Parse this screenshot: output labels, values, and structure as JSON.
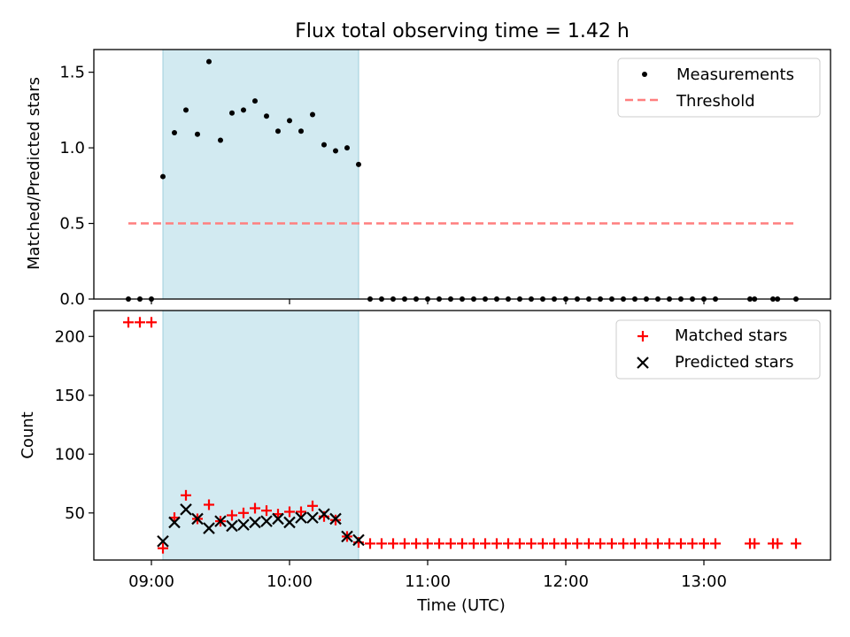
{
  "chart_data": [
    {
      "type": "scatter",
      "title": "Flux total observing time = 1.42 h",
      "xlabel": "",
      "ylabel": "Matched/Predicted stars",
      "xlim": [
        "08:35",
        "13:55"
      ],
      "ylim": [
        0,
        1.65
      ],
      "yticks": [
        0.0,
        0.5,
        1.0,
        1.5
      ],
      "ytick_labels": [
        "0.0",
        "0.5",
        "1.0",
        "1.5"
      ],
      "grid": false,
      "legend_position": "upper right",
      "shaded_interval": {
        "start": "09:05",
        "end": "10:30",
        "color": "#add8e6"
      },
      "series": [
        {
          "name": "Measurements",
          "marker": "dot",
          "color": "#000000",
          "x": [
            "08:50",
            "08:55",
            "09:00",
            "09:05",
            "09:10",
            "09:15",
            "09:20",
            "09:25",
            "09:30",
            "09:35",
            "09:40",
            "09:45",
            "09:50",
            "09:55",
            "10:00",
            "10:05",
            "10:10",
            "10:15",
            "10:20",
            "10:25",
            "10:30",
            "10:35",
            "10:40",
            "10:45",
            "10:50",
            "10:55",
            "11:00",
            "11:05",
            "11:10",
            "11:15",
            "11:20",
            "11:25",
            "11:30",
            "11:35",
            "11:40",
            "11:45",
            "11:50",
            "11:55",
            "12:00",
            "12:05",
            "12:10",
            "12:15",
            "12:20",
            "12:25",
            "12:30",
            "12:35",
            "12:40",
            "12:45",
            "12:50",
            "12:55",
            "13:00",
            "13:05",
            "13:20",
            "13:22",
            "13:30",
            "13:32",
            "13:40"
          ],
          "y": [
            0,
            0,
            0,
            0.81,
            1.1,
            1.25,
            1.09,
            1.57,
            1.05,
            1.23,
            1.25,
            1.31,
            1.21,
            1.11,
            1.18,
            1.11,
            1.22,
            1.02,
            0.98,
            1.0,
            0.89,
            0,
            0,
            0,
            0,
            0,
            0,
            0,
            0,
            0,
            0,
            0,
            0,
            0,
            0,
            0,
            0,
            0,
            0,
            0,
            0,
            0,
            0,
            0,
            0,
            0,
            0,
            0,
            0,
            0,
            0,
            0,
            0,
            0,
            0,
            0,
            0
          ]
        },
        {
          "name": "Threshold",
          "marker": "dashed-line",
          "color": "#ff7f7f",
          "x": [
            "08:50",
            "13:40"
          ],
          "y": [
            0.5,
            0.5
          ]
        }
      ]
    },
    {
      "type": "scatter",
      "title": "",
      "xlabel": "Time (UTC)",
      "ylabel": "Count",
      "xlim": [
        "08:35",
        "13:55"
      ],
      "ylim": [
        10,
        222
      ],
      "yticks": [
        50,
        100,
        150,
        200
      ],
      "ytick_labels": [
        "50",
        "100",
        "150",
        "200"
      ],
      "xticks": [
        "09:00",
        "10:00",
        "11:00",
        "12:00",
        "13:00"
      ],
      "xtick_labels": [
        "09:00",
        "10:00",
        "11:00",
        "12:00",
        "13:00"
      ],
      "grid": false,
      "legend_position": "upper right",
      "shaded_interval": {
        "start": "09:05",
        "end": "10:30",
        "color": "#add8e6"
      },
      "series": [
        {
          "name": "Matched stars",
          "marker": "plus",
          "color": "#ff0000",
          "x": [
            "08:50",
            "08:55",
            "09:00",
            "09:05",
            "09:10",
            "09:15",
            "09:20",
            "09:25",
            "09:30",
            "09:35",
            "09:40",
            "09:45",
            "09:50",
            "09:55",
            "10:00",
            "10:05",
            "10:10",
            "10:15",
            "10:20",
            "10:25",
            "10:30",
            "10:35",
            "10:40",
            "10:45",
            "10:50",
            "10:55",
            "11:00",
            "11:05",
            "11:10",
            "11:15",
            "11:20",
            "11:25",
            "11:30",
            "11:35",
            "11:40",
            "11:45",
            "11:50",
            "11:55",
            "12:00",
            "12:05",
            "12:10",
            "12:15",
            "12:20",
            "12:25",
            "12:30",
            "12:35",
            "12:40",
            "12:45",
            "12:50",
            "12:55",
            "13:00",
            "13:05",
            "13:20",
            "13:22",
            "13:30",
            "13:32",
            "13:40"
          ],
          "y": [
            212,
            212,
            212,
            20,
            46,
            65,
            45,
            57,
            43,
            48,
            50,
            54,
            52,
            49,
            51,
            51,
            56,
            47,
            44,
            30,
            25,
            24,
            24,
            24,
            24,
            24,
            24,
            24,
            24,
            24,
            24,
            24,
            24,
            24,
            24,
            24,
            24,
            24,
            24,
            24,
            24,
            24,
            24,
            24,
            24,
            24,
            24,
            24,
            24,
            24,
            24,
            24,
            24,
            24,
            24,
            24,
            24
          ]
        },
        {
          "name": "Predicted stars",
          "marker": "x",
          "color": "#000000",
          "x": [
            "09:05",
            "09:10",
            "09:15",
            "09:20",
            "09:25",
            "09:30",
            "09:35",
            "09:40",
            "09:45",
            "09:50",
            "09:55",
            "10:00",
            "10:05",
            "10:10",
            "10:15",
            "10:20",
            "10:25",
            "10:30"
          ],
          "y": [
            26,
            42,
            53,
            45,
            37,
            43,
            39,
            40,
            42,
            43,
            45,
            42,
            46,
            46,
            49,
            45,
            30,
            27
          ]
        }
      ]
    }
  ]
}
